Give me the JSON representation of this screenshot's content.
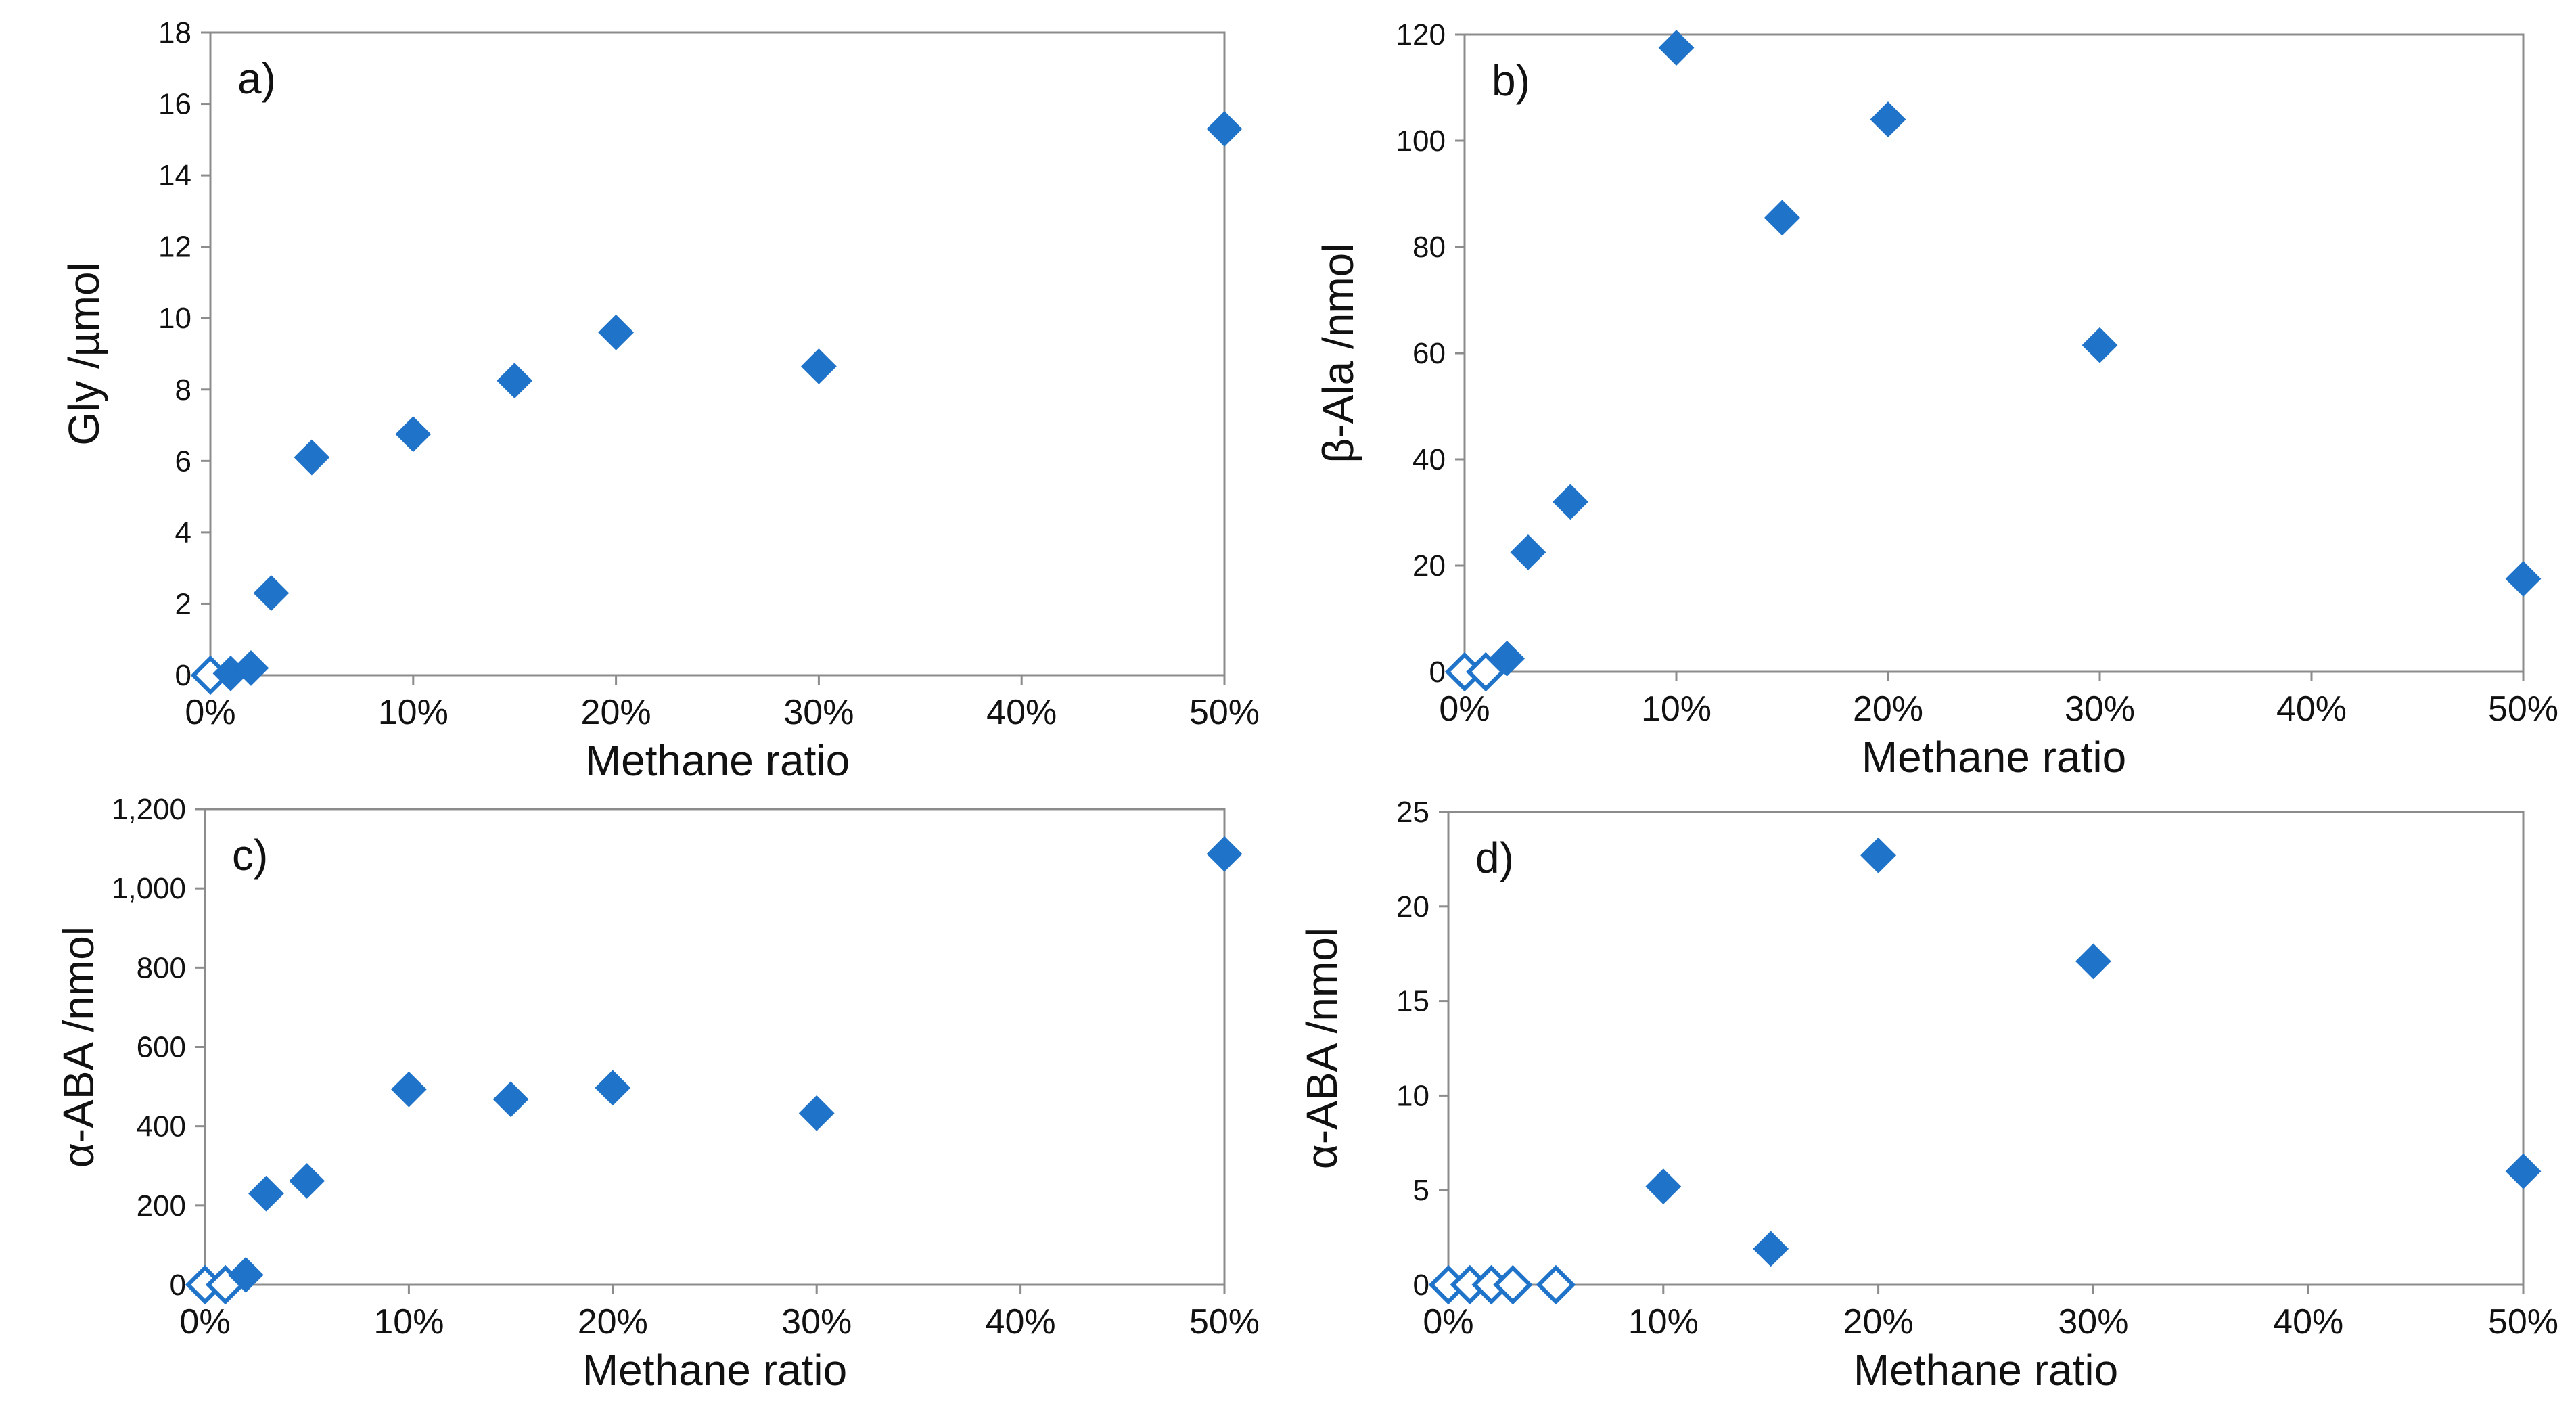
{
  "colors": {
    "marker": "#1f73c9",
    "axis": "#8c8c8c",
    "text": "#111111"
  },
  "chart_data": [
    {
      "type": "scatter",
      "panel_label": "a)",
      "xlabel": "Methane ratio",
      "ylabel": "Gly /µmol",
      "xlim": [
        0,
        50
      ],
      "ylim": [
        0,
        18
      ],
      "x_ticks": [
        0,
        10,
        20,
        30,
        40,
        50
      ],
      "x_tick_labels": [
        "0%",
        "10%",
        "20%",
        "30%",
        "40%",
        "50%"
      ],
      "y_ticks": [
        0,
        2,
        4,
        6,
        8,
        10,
        12,
        14,
        16,
        18
      ],
      "y_tick_labels": [
        "0",
        "2",
        "4",
        "6",
        "8",
        "10",
        "12",
        "14",
        "16",
        "18"
      ],
      "grid": false,
      "legend": "none",
      "open_points": [
        {
          "x": 0,
          "y": 0
        }
      ],
      "filled_points": [
        {
          "x": 1,
          "y": 0.05
        },
        {
          "x": 2,
          "y": 0.2
        },
        {
          "x": 3,
          "y": 2.3
        },
        {
          "x": 5,
          "y": 6.1
        },
        {
          "x": 10,
          "y": 6.75
        },
        {
          "x": 15,
          "y": 8.25
        },
        {
          "x": 20,
          "y": 9.6
        },
        {
          "x": 30,
          "y": 8.65
        },
        {
          "x": 50,
          "y": 15.3
        }
      ]
    },
    {
      "type": "scatter",
      "panel_label": "b)",
      "xlabel": "Methane ratio",
      "ylabel": "β-Ala /nmol",
      "xlim": [
        0,
        50
      ],
      "ylim": [
        0,
        120
      ],
      "x_ticks": [
        0,
        10,
        20,
        30,
        40,
        50
      ],
      "x_tick_labels": [
        "0%",
        "10%",
        "20%",
        "30%",
        "40%",
        "50%"
      ],
      "y_ticks": [
        0,
        20,
        40,
        60,
        80,
        100,
        120
      ],
      "y_tick_labels": [
        "0",
        "20",
        "40",
        "60",
        "80",
        "100",
        "120"
      ],
      "grid": false,
      "legend": "none",
      "open_points": [
        {
          "x": 0,
          "y": 0
        },
        {
          "x": 1,
          "y": 0
        }
      ],
      "filled_points": [
        {
          "x": 2,
          "y": 2.5
        },
        {
          "x": 3,
          "y": 22.5
        },
        {
          "x": 5,
          "y": 32
        },
        {
          "x": 10,
          "y": 117.5
        },
        {
          "x": 15,
          "y": 85.5
        },
        {
          "x": 20,
          "y": 104
        },
        {
          "x": 30,
          "y": 61.5
        },
        {
          "x": 50,
          "y": 17.5
        }
      ]
    },
    {
      "type": "scatter",
      "panel_label": "c)",
      "xlabel": "Methane ratio",
      "ylabel": "α-ABA /nmol",
      "xlim": [
        0,
        50
      ],
      "ylim": [
        0,
        1200
      ],
      "x_ticks": [
        0,
        10,
        20,
        30,
        40,
        50
      ],
      "x_tick_labels": [
        "0%",
        "10%",
        "20%",
        "30%",
        "40%",
        "50%"
      ],
      "y_ticks": [
        0,
        200,
        400,
        600,
        800,
        1000,
        1200
      ],
      "y_tick_labels": [
        "0",
        "200",
        "400",
        "600",
        "800",
        "1,000",
        "1,200"
      ],
      "grid": false,
      "legend": "none",
      "open_points": [
        {
          "x": 0,
          "y": 0
        },
        {
          "x": 1,
          "y": 0
        }
      ],
      "filled_points": [
        {
          "x": 2,
          "y": 25
        },
        {
          "x": 3,
          "y": 230
        },
        {
          "x": 5,
          "y": 262
        },
        {
          "x": 10,
          "y": 493
        },
        {
          "x": 15,
          "y": 468
        },
        {
          "x": 20,
          "y": 497
        },
        {
          "x": 30,
          "y": 433
        },
        {
          "x": 50,
          "y": 1087
        }
      ]
    },
    {
      "type": "scatter",
      "panel_label": "d)",
      "xlabel": "Methane ratio",
      "ylabel": "α-ABA /nmol",
      "xlim": [
        0,
        50
      ],
      "ylim": [
        0,
        25
      ],
      "x_ticks": [
        0,
        10,
        20,
        30,
        40,
        50
      ],
      "x_tick_labels": [
        "0%",
        "10%",
        "20%",
        "30%",
        "40%",
        "50%"
      ],
      "y_ticks": [
        0,
        5,
        10,
        15,
        20,
        25
      ],
      "y_tick_labels": [
        "0",
        "5",
        "10",
        "15",
        "20",
        "25"
      ],
      "grid": false,
      "legend": "none",
      "open_points": [
        {
          "x": 0,
          "y": 0
        },
        {
          "x": 1,
          "y": 0
        },
        {
          "x": 2,
          "y": 0
        },
        {
          "x": 3,
          "y": 0
        },
        {
          "x": 5,
          "y": 0
        }
      ],
      "filled_points": [
        {
          "x": 10,
          "y": 5.2
        },
        {
          "x": 15,
          "y": 1.9
        },
        {
          "x": 20,
          "y": 22.7
        },
        {
          "x": 30,
          "y": 17.1
        },
        {
          "x": 50,
          "y": 6
        }
      ]
    }
  ]
}
